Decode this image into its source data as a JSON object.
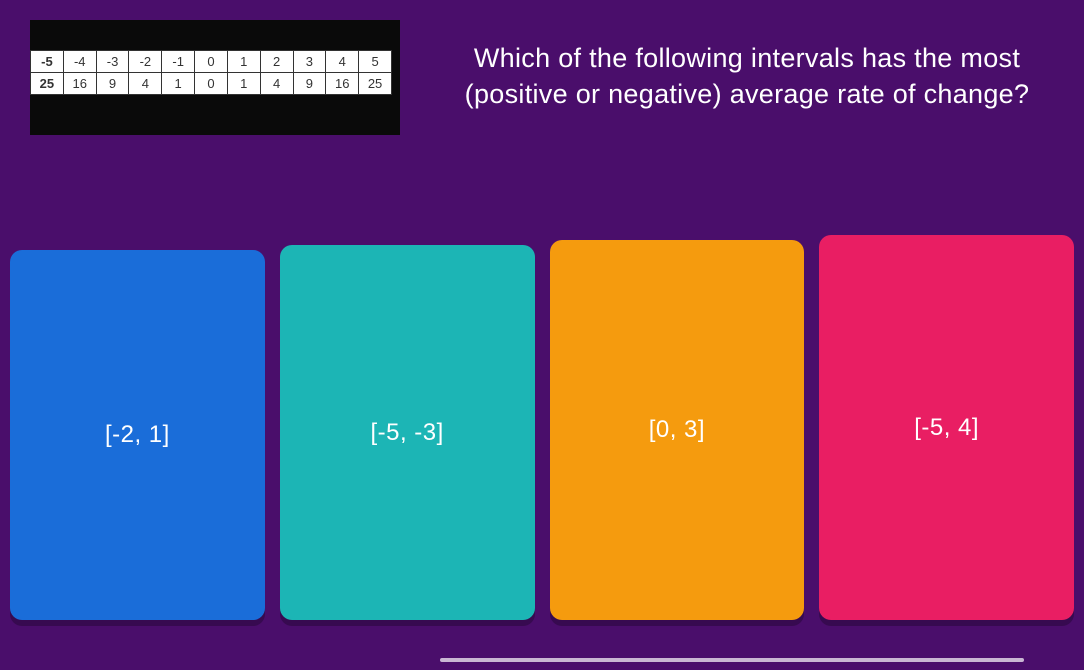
{
  "question": "Which of the following intervals has the most (positive or negative) average rate of change?",
  "table": {
    "row1": [
      "-5",
      "-4",
      "-3",
      "-2",
      "-1",
      "0",
      "1",
      "2",
      "3",
      "4",
      "5"
    ],
    "row2": [
      "25",
      "16",
      "9",
      "4",
      "1",
      "0",
      "1",
      "4",
      "9",
      "16",
      "25"
    ]
  },
  "answers": [
    {
      "label": "[-2, 1]",
      "color": "#1a6dd9"
    },
    {
      "label": "[-5, -3]",
      "color": "#1cb5b5"
    },
    {
      "label": "[0, 3]",
      "color": "#f59b0e"
    },
    {
      "label": "[-5, 4]",
      "color": "#e91e63"
    }
  ]
}
